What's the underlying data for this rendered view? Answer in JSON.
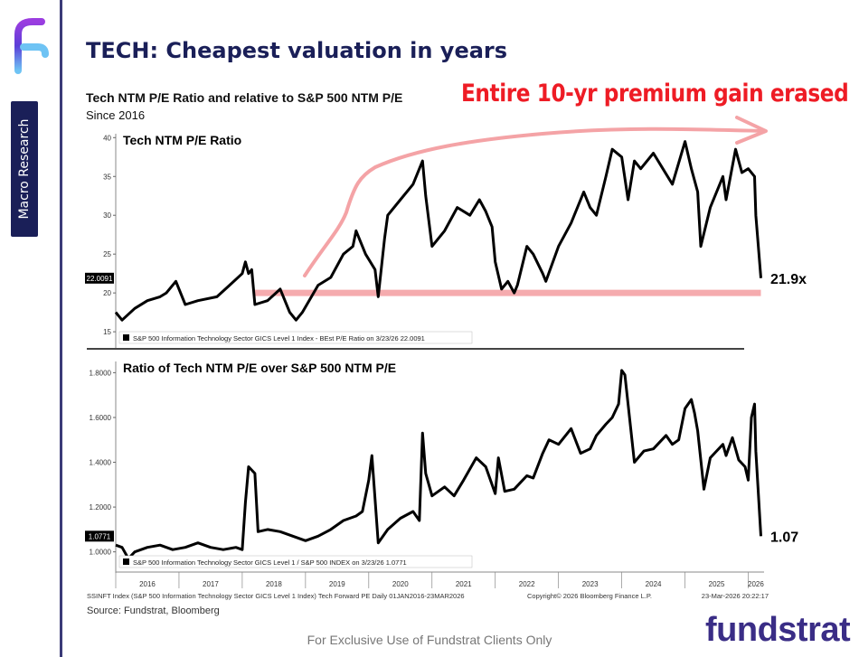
{
  "page": {
    "title": "TECH: Cheapest valuation in years",
    "sidebar_label": "Macro Research",
    "footer": "For Exclusive Use of Fundstrat Clients Only",
    "brand": "fundstrat",
    "logo_icon": "fundstrat-logo-icon",
    "source": "Source: Fundstrat, Bloomberg",
    "callout": "Entire 10-yr premium gain erased",
    "colors": {
      "title": "#1a1f58",
      "callout": "#ee1c25",
      "highlight": "#f4a3a6",
      "line": "#000000"
    }
  },
  "chart_data": [
    {
      "type": "line",
      "title": "Tech NTM P/E Ratio and relative to S&P 500 NTM P/E",
      "subtitle": "Since 2016",
      "panel_label": "Tech NTM P/E Ratio",
      "legend": "S&P 500 Information Technology Sector GICS Level 1 Index - BEst P/E Ratio on 3/23/26 22.0091",
      "last_value_box": "22.0091",
      "end_label": "21.9x",
      "ylim": [
        13.5,
        40.5
      ],
      "yticks": [
        15,
        20,
        25,
        30,
        35,
        40
      ],
      "xlim": [
        2016.0,
        2026.25
      ],
      "reference_line": {
        "y": 20,
        "x_start": 2018.2,
        "x_end": 2026.2
      },
      "series": [
        {
          "name": "Tech NTM P/E",
          "x": [
            2016.0,
            2016.1,
            2016.3,
            2016.5,
            2016.7,
            2016.8,
            2016.95,
            2017.1,
            2017.3,
            2017.6,
            2017.8,
            2018.0,
            2018.05,
            2018.1,
            2018.15,
            2018.2,
            2018.4,
            2018.6,
            2018.75,
            2018.85,
            2018.95,
            2019.2,
            2019.4,
            2019.6,
            2019.75,
            2019.8,
            2019.95,
            2020.1,
            2020.15,
            2020.25,
            2020.3,
            2020.5,
            2020.7,
            2020.85,
            2020.9,
            2021.0,
            2021.2,
            2021.4,
            2021.6,
            2021.75,
            2021.85,
            2021.95,
            2022.0,
            2022.1,
            2022.2,
            2022.3,
            2022.35,
            2022.5,
            2022.6,
            2022.75,
            2022.8,
            2023.0,
            2023.2,
            2023.4,
            2023.5,
            2023.6,
            2023.75,
            2023.85,
            2024.0,
            2024.1,
            2024.2,
            2024.3,
            2024.5,
            2024.65,
            2024.8,
            2025.0,
            2025.1,
            2025.2,
            2025.25,
            2025.4,
            2025.55,
            2025.6,
            2025.65,
            2025.8,
            2025.9,
            2026.0,
            2026.1,
            2026.12,
            2026.2
          ],
          "values": [
            17.5,
            16.5,
            18,
            19,
            19.5,
            20,
            21.5,
            18.5,
            19,
            19.5,
            21,
            22.5,
            24,
            22.5,
            23,
            18.5,
            19,
            20.5,
            17.5,
            16.5,
            17.5,
            21,
            22,
            25,
            26,
            28,
            25,
            23,
            19.5,
            27,
            30,
            32,
            34,
            37,
            32.5,
            26,
            28,
            31,
            30,
            32,
            30.5,
            28.5,
            24,
            20.5,
            21.5,
            20,
            21,
            26,
            25,
            22.5,
            21.5,
            26,
            29,
            33,
            31,
            30,
            35,
            38.5,
            37.5,
            32,
            37,
            36,
            38,
            36,
            34,
            39.5,
            36,
            33,
            26,
            31,
            34,
            35,
            32,
            38.5,
            35.5,
            36,
            35,
            30,
            21.9
          ]
        }
      ]
    },
    {
      "type": "line",
      "panel_label": "Ratio of Tech NTM P/E over S&P 500 NTM P/E",
      "legend": "S&P 500 Information Technology Sector GICS Level 1 / S&P 500 INDEX on 3/23/26 1.0771",
      "last_value_box": "1.0771",
      "end_label": "1.07",
      "ylim": [
        0.93,
        1.85
      ],
      "yticks": [
        "1.0000",
        "1.2000",
        "1.4000",
        "1.6000",
        "1.8000"
      ],
      "xlim": [
        2016.0,
        2026.25
      ],
      "x_tick_labels": [
        "2016",
        "2017",
        "2018",
        "2019",
        "2020",
        "2021",
        "2022",
        "2023",
        "2024",
        "2025",
        "2026"
      ],
      "series": [
        {
          "name": "Relative P/E",
          "x": [
            2016.0,
            2016.1,
            2016.2,
            2016.3,
            2016.5,
            2016.7,
            2016.9,
            2017.1,
            2017.3,
            2017.5,
            2017.7,
            2017.9,
            2018.0,
            2018.05,
            2018.1,
            2018.2,
            2018.25,
            2018.4,
            2018.6,
            2018.8,
            2018.9,
            2019.0,
            2019.2,
            2019.4,
            2019.6,
            2019.8,
            2019.9,
            2020.0,
            2020.05,
            2020.15,
            2020.3,
            2020.5,
            2020.7,
            2020.8,
            2020.85,
            2020.9,
            2021.0,
            2021.2,
            2021.35,
            2021.5,
            2021.7,
            2021.85,
            2021.9,
            2022.0,
            2022.05,
            2022.15,
            2022.3,
            2022.4,
            2022.5,
            2022.6,
            2022.75,
            2022.85,
            2023.0,
            2023.2,
            2023.35,
            2023.5,
            2023.6,
            2023.75,
            2023.85,
            2023.95,
            2024.0,
            2024.05,
            2024.2,
            2024.35,
            2024.5,
            2024.7,
            2024.8,
            2024.9,
            2025.0,
            2025.1,
            2025.15,
            2025.2,
            2025.3,
            2025.4,
            2025.5,
            2025.6,
            2025.65,
            2025.75,
            2025.85,
            2025.95,
            2026.0,
            2026.05,
            2026.1,
            2026.12,
            2026.2
          ],
          "values": [
            1.03,
            1.02,
            0.97,
            1.0,
            1.02,
            1.03,
            1.01,
            1.02,
            1.04,
            1.02,
            1.01,
            1.02,
            1.01,
            1.22,
            1.38,
            1.35,
            1.09,
            1.1,
            1.09,
            1.07,
            1.06,
            1.05,
            1.07,
            1.1,
            1.14,
            1.16,
            1.18,
            1.32,
            1.43,
            1.04,
            1.1,
            1.15,
            1.18,
            1.14,
            1.53,
            1.35,
            1.25,
            1.29,
            1.25,
            1.32,
            1.42,
            1.38,
            1.34,
            1.26,
            1.42,
            1.27,
            1.28,
            1.31,
            1.34,
            1.33,
            1.44,
            1.5,
            1.48,
            1.55,
            1.44,
            1.46,
            1.52,
            1.57,
            1.6,
            1.66,
            1.81,
            1.79,
            1.4,
            1.45,
            1.46,
            1.52,
            1.48,
            1.5,
            1.64,
            1.68,
            1.62,
            1.54,
            1.28,
            1.42,
            1.45,
            1.48,
            1.43,
            1.51,
            1.41,
            1.38,
            1.32,
            1.6,
            1.66,
            1.45,
            1.07
          ]
        }
      ]
    }
  ],
  "axis_footer": {
    "left": "SSINFT Index (S&P 500 Information Technology Sector GICS Level 1 Index) Tech Forward PE Daily 01JAN2016-23MAR2026",
    "middle": "Copyright© 2026 Bloomberg Finance L.P.",
    "right": "23-Mar-2026 20:22:17"
  }
}
